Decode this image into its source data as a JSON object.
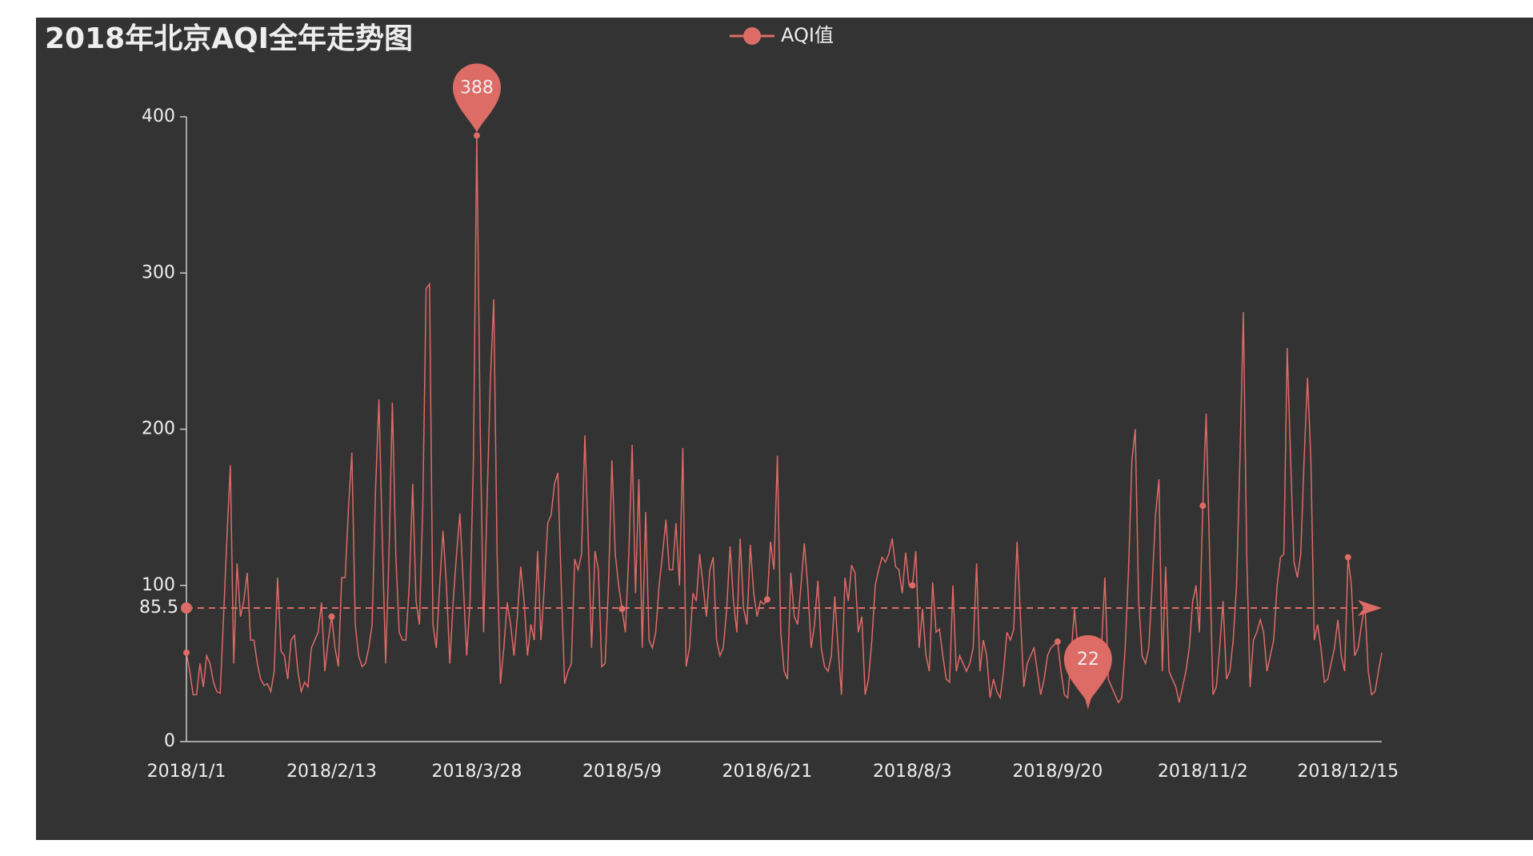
{
  "chart_data": {
    "type": "line",
    "title": "2018年北京AQI全年走势图",
    "categories": [
      "2018/1/1",
      null,
      null,
      null,
      null,
      null,
      null,
      null,
      null,
      null,
      null,
      null,
      null,
      null,
      null,
      null,
      null,
      null,
      null,
      null,
      null,
      null,
      null,
      null,
      null,
      null,
      null,
      null,
      null,
      null,
      null,
      null,
      null,
      null,
      null,
      null,
      null,
      null,
      null,
      null,
      null,
      null,
      null,
      "2018/2/13",
      null,
      null,
      null,
      null,
      null,
      null,
      null,
      null,
      null,
      null,
      null,
      null,
      null,
      null,
      null,
      null,
      null,
      null,
      null,
      null,
      null,
      null,
      null,
      null,
      null,
      null,
      null,
      null,
      null,
      null,
      null,
      null,
      null,
      null,
      null,
      null,
      null,
      null,
      null,
      null,
      null,
      null,
      "2018/3/28",
      null,
      null,
      null,
      null,
      null,
      null,
      null,
      null,
      null,
      null,
      null,
      null,
      null,
      null,
      null,
      null,
      null,
      null,
      null,
      null,
      null,
      null,
      null,
      null,
      null,
      null,
      null,
      null,
      null,
      null,
      null,
      null,
      null,
      null,
      null,
      null,
      null,
      null,
      null,
      null,
      null,
      null,
      "2018/5/9",
      null,
      null,
      null,
      null,
      null,
      null,
      null,
      null,
      null,
      null,
      null,
      null,
      null,
      null,
      null,
      null,
      null,
      null,
      null,
      null,
      null,
      null,
      null,
      null,
      null,
      null,
      null,
      null,
      null,
      null,
      null,
      null,
      null,
      null,
      null,
      null,
      null,
      null,
      null,
      null,
      null,
      null,
      "2018/6/21",
      null,
      null,
      null,
      null,
      null,
      null,
      null,
      null,
      null,
      null,
      null,
      null,
      null,
      null,
      null,
      null,
      null,
      null,
      null,
      null,
      null,
      null,
      null,
      null,
      null,
      null,
      null,
      null,
      null,
      null,
      null,
      null,
      null,
      null,
      null,
      null,
      null,
      null,
      null,
      null,
      null,
      null,
      "2018/8/3",
      null,
      null,
      null,
      null,
      null,
      null,
      null,
      null,
      null,
      null,
      null,
      null,
      null,
      null,
      null,
      null,
      null,
      null,
      null,
      null,
      null,
      null,
      null,
      null,
      null,
      null,
      null,
      null,
      null,
      null,
      null,
      null,
      null,
      null,
      null,
      null,
      null,
      null,
      null,
      null,
      null,
      null,
      "2018/9/20",
      null,
      null,
      null,
      null,
      null,
      null,
      null,
      null,
      null,
      null,
      null,
      null,
      null,
      null,
      null,
      null,
      null,
      null,
      null,
      null,
      null,
      null,
      null,
      null,
      null,
      null,
      null,
      null,
      null,
      null,
      null,
      null,
      null,
      null,
      null,
      null,
      null,
      null,
      null,
      null,
      null,
      null,
      "2018/11/2",
      null,
      null,
      null,
      null,
      null,
      null,
      null,
      null,
      null,
      null,
      null,
      null,
      null,
      null,
      null,
      null,
      null,
      null,
      null,
      null,
      null,
      null,
      null,
      null,
      null,
      null,
      null,
      null,
      null,
      null,
      null,
      null,
      null,
      null,
      null,
      null,
      null,
      null,
      null,
      null,
      null,
      null,
      "2018/12/15",
      null,
      null,
      null,
      null,
      null,
      null,
      null,
      null,
      null,
      null
    ],
    "series": [
      {
        "name": "AQI值",
        "color": "#dd6b66",
        "values": [
          57,
          45,
          30,
          30,
          50,
          35,
          55,
          50,
          38,
          32,
          31,
          80,
          130,
          177,
          50,
          114,
          80,
          90,
          108,
          65,
          65,
          50,
          40,
          36,
          37,
          32,
          45,
          105,
          58,
          55,
          40,
          65,
          68,
          45,
          32,
          38,
          35,
          60,
          65,
          70,
          89,
          45,
          65,
          80,
          60,
          48,
          105,
          105,
          150,
          185,
          75,
          55,
          48,
          50,
          60,
          75,
          160,
          219,
          130,
          50,
          120,
          217,
          120,
          70,
          65,
          65,
          100,
          165,
          90,
          75,
          150,
          290,
          293,
          75,
          60,
          100,
          135,
          100,
          50,
          90,
          120,
          146,
          100,
          55,
          90,
          180,
          388,
          200,
          70,
          150,
          230,
          283,
          120,
          37,
          60,
          89,
          75,
          55,
          80,
          112,
          90,
          55,
          75,
          65,
          122,
          65,
          100,
          140,
          145,
          165,
          172,
          100,
          37,
          45,
          50,
          117,
          110,
          120,
          196,
          130,
          60,
          122,
          110,
          48,
          50,
          100,
          180,
          120,
          100,
          85,
          70,
          120,
          190,
          95,
          168,
          60,
          147,
          65,
          60,
          70,
          100,
          120,
          142,
          110,
          110,
          140,
          100,
          188,
          48,
          60,
          95,
          90,
          120,
          100,
          80,
          110,
          118,
          65,
          55,
          60,
          85,
          125,
          90,
          70,
          130,
          85,
          75,
          126,
          95,
          80,
          90,
          88,
          91,
          128,
          110,
          183,
          70,
          45,
          40,
          108,
          80,
          75,
          100,
          127,
          100,
          60,
          75,
          103,
          60,
          48,
          45,
          55,
          93,
          60,
          30,
          105,
          90,
          113,
          108,
          70,
          80,
          30,
          40,
          65,
          100,
          110,
          118,
          115,
          120,
          130,
          112,
          110,
          95,
          121,
          100,
          100,
          122,
          60,
          85,
          55,
          45,
          102,
          70,
          72,
          55,
          40,
          38,
          100,
          45,
          55,
          50,
          45,
          50,
          60,
          114,
          45,
          65,
          55,
          28,
          40,
          32,
          28,
          45,
          70,
          65,
          72,
          128,
          80,
          35,
          50,
          55,
          60,
          45,
          30,
          40,
          55,
          60,
          62,
          64,
          45,
          30,
          28,
          55,
          85,
          60,
          40,
          30,
          22,
          30,
          35,
          50,
          60,
          105,
          40,
          35,
          30,
          25,
          28,
          60,
          110,
          180,
          200,
          90,
          55,
          50,
          60,
          100,
          145,
          168,
          45,
          112,
          45,
          40,
          35,
          25,
          35,
          45,
          60,
          90,
          100,
          70,
          151,
          210,
          120,
          30,
          35,
          60,
          90,
          40,
          45,
          65,
          100,
          180,
          275,
          120,
          35,
          65,
          70,
          78,
          70,
          45,
          55,
          65,
          100,
          118,
          120,
          252,
          180,
          115,
          105,
          120,
          180,
          233,
          180,
          65,
          75,
          60,
          38,
          40,
          50,
          60,
          78,
          55,
          45,
          118,
          100,
          55,
          60,
          75,
          88,
          45,
          30,
          32,
          45,
          57
        ]
      }
    ],
    "ylim": [
      0,
      400
    ],
    "yticks": [
      0,
      100,
      200,
      300,
      400
    ],
    "max_point": 388,
    "min_point": 22,
    "average": 85.5
  }
}
